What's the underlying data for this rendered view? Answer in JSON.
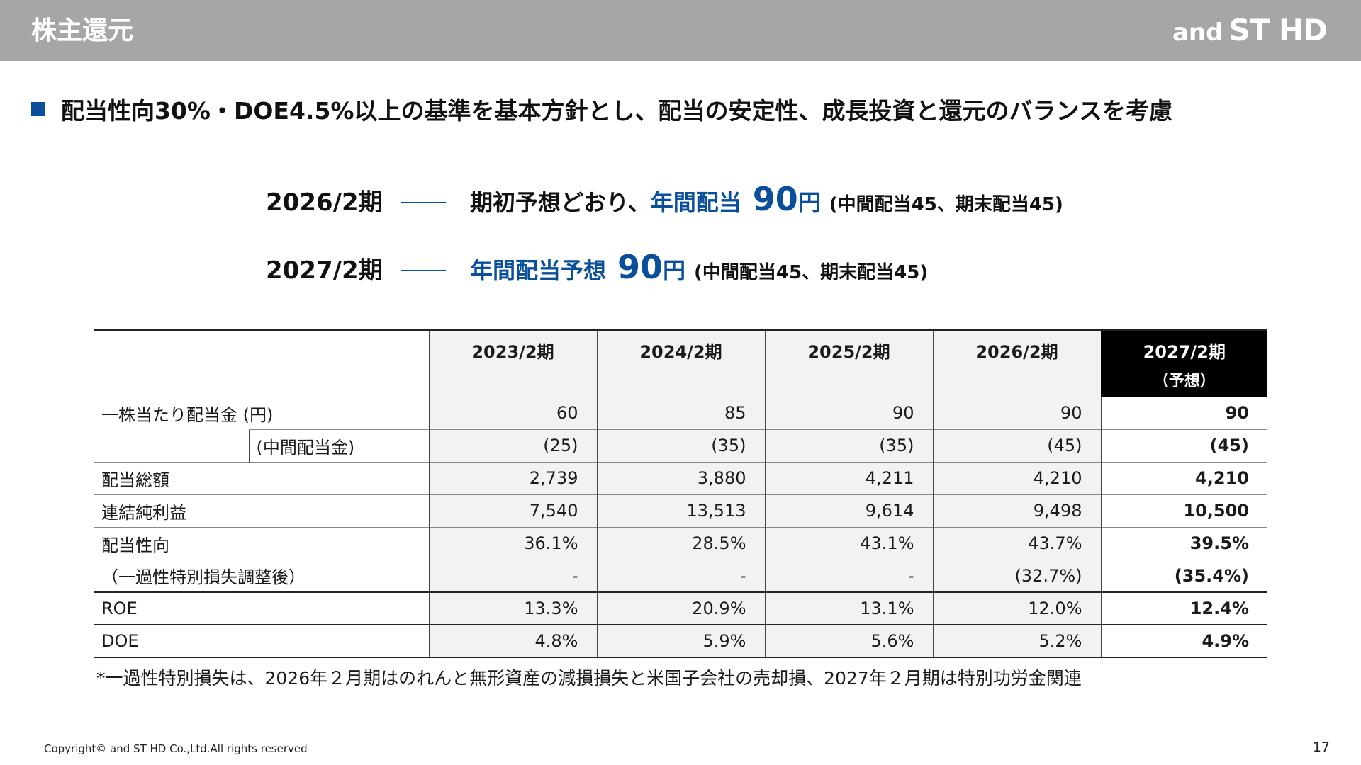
{
  "header": {
    "title": "株主還元",
    "logo_prefix": "and",
    "logo_main": "ST HD"
  },
  "policy": {
    "text": "配当性向30%・DOE4.5%以上の基準を基本方針とし、配当の安定性、成長投資と還元のバランスを考慮"
  },
  "forecast": [
    {
      "period": "2026/2期",
      "lead": "期初予想どおり、",
      "label": "年間配当",
      "amount": "90",
      "unit": "円",
      "note": "(中間配当45、期末配当45)"
    },
    {
      "period": "2027/2期",
      "lead": "",
      "label": "年間配当予想",
      "amount": "90",
      "unit": "円",
      "note": "(中間配当45、期末配当45)"
    }
  ],
  "table": {
    "columns": [
      "2023/2期",
      "2024/2期",
      "2025/2期",
      "2026/2期"
    ],
    "forecast_column": {
      "label": "2027/2期",
      "sub": "（予想）"
    },
    "rows": [
      {
        "label": "一株当たり配当金 (円)",
        "values": [
          "60",
          "85",
          "90",
          "90"
        ],
        "forecast": "90"
      },
      {
        "label": "(中間配当金)",
        "values": [
          "(25)",
          "(35)",
          "(35)",
          "(45)"
        ],
        "forecast": "(45)"
      },
      {
        "label": "配当総額",
        "values": [
          "2,739",
          "3,880",
          "4,211",
          "4,210"
        ],
        "forecast": "4,210"
      },
      {
        "label": "連結純利益",
        "values": [
          "7,540",
          "13,513",
          "9,614",
          "9,498"
        ],
        "forecast": "10,500"
      },
      {
        "label": "配当性向",
        "values": [
          "36.1%",
          "28.5%",
          "43.1%",
          "43.7%"
        ],
        "forecast": "39.5%"
      },
      {
        "label": "（一過性特別損失調整後）",
        "values": [
          "-",
          "-",
          "-",
          "(32.7%)"
        ],
        "forecast": "(35.4%)"
      },
      {
        "label": "ROE",
        "values": [
          "13.3%",
          "20.9%",
          "13.1%",
          "12.0%"
        ],
        "forecast": "12.4%"
      },
      {
        "label": "DOE",
        "values": [
          "4.8%",
          "5.9%",
          "5.6%",
          "5.2%"
        ],
        "forecast": "4.9%"
      }
    ]
  },
  "footnote": "*一過性特別損失は、2026年２月期はのれんと無形資産の減損損失と米国子会社の売却損、2027年２月期は特別功労金関連",
  "footer": {
    "copyright": "Copyright© and ST HD Co.,Ltd.All rights reserved",
    "page": "17"
  },
  "colors": {
    "header_bg": "#a6a6a6",
    "accent_blue": "#0a4f9b",
    "table_shade": "#f2f2f2"
  }
}
